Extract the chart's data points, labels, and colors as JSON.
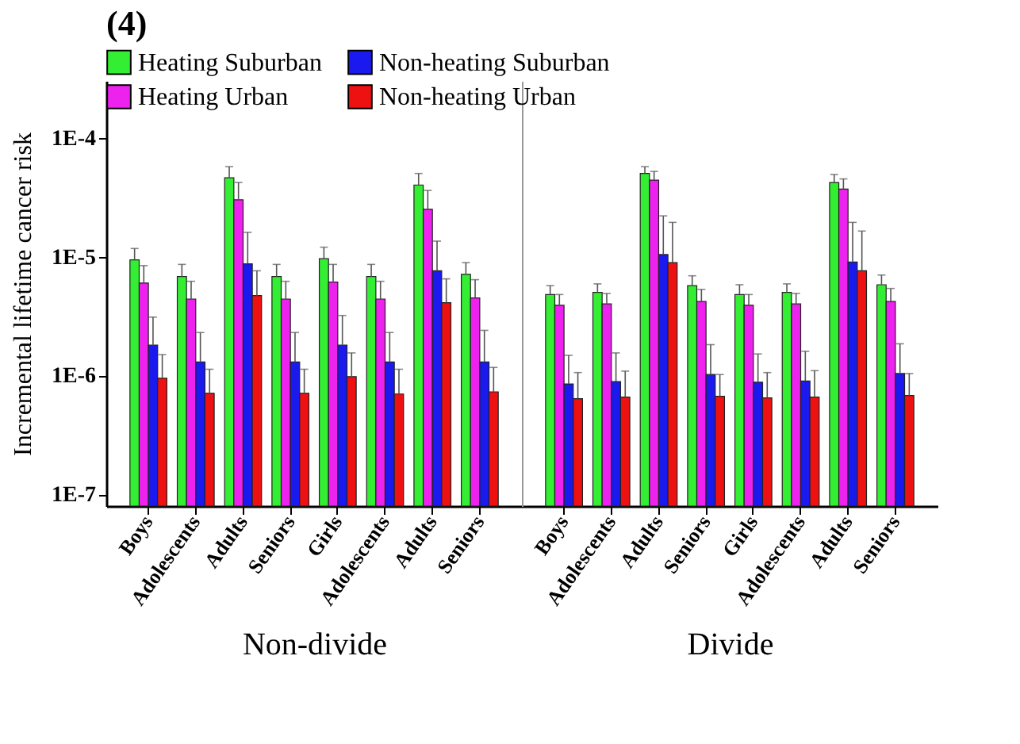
{
  "chart_data": [
    {
      "type": "bar",
      "title": "(4)",
      "ylabel": "Incremental lifetime cancer risk",
      "xlabel": "Non-divide",
      "log": "y",
      "legend": "top",
      "grid": false,
      "categories": [
        "Boys",
        "Adolescents",
        "Adults",
        "Seniors",
        "Girls",
        "Adolescents",
        "Adults",
        "Seniors"
      ],
      "ylim": [
        8e-08,
        0.0003
      ],
      "yticks": [
        {
          "value": 1e-07,
          "label": "1E-7"
        },
        {
          "value": 1e-06,
          "label": "1E-6"
        },
        {
          "value": 1e-05,
          "label": "1E-5"
        },
        {
          "value": 0.0001,
          "label": "1E-4"
        }
      ],
      "series": [
        {
          "name": "Heating Suburban",
          "color": "#33ee33",
          "values": [
            9.4e-06,
            6.8e-06,
            4.6e-05,
            6.8e-06,
            9.6e-06,
            6.8e-06,
            4e-05,
            7.1e-06
          ],
          "errors": [
            [
              9.4e-06,
              1.17e-05
            ],
            [
              6.8e-06,
              8.6e-06
            ],
            [
              4.6e-05,
              5.7e-05
            ],
            [
              6.8e-06,
              8.6e-06
            ],
            [
              9.6e-06,
              1.2e-05
            ],
            [
              6.8e-06,
              8.6e-06
            ],
            [
              4e-05,
              5e-05
            ],
            [
              7.1e-06,
              8.9e-06
            ]
          ]
        },
        {
          "name": "Heating Urban",
          "color": "#ee22ee",
          "values": [
            6e-06,
            4.4e-06,
            3e-05,
            4.4e-06,
            6.1e-06,
            4.4e-06,
            2.5e-05,
            4.5e-06
          ],
          "errors": [
            [
              6e-06,
              8.4e-06
            ],
            [
              4.4e-06,
              6.2e-06
            ],
            [
              3e-05,
              4.2e-05
            ],
            [
              4.4e-06,
              6.2e-06
            ],
            [
              6.1e-06,
              8.6e-06
            ],
            [
              4.4e-06,
              6.2e-06
            ],
            [
              2.5e-05,
              3.6e-05
            ],
            [
              4.5e-06,
              6.4e-06
            ]
          ]
        },
        {
          "name": "Non-heating Suburban",
          "color": "#1a1aee",
          "values": [
            1.8e-06,
            1.3e-06,
            8.7e-06,
            1.3e-06,
            1.8e-06,
            1.3e-06,
            7.6e-06,
            1.3e-06
          ],
          "errors": [
            [
              1.8e-06,
              3.1e-06
            ],
            [
              1.3e-06,
              2.3e-06
            ],
            [
              8.7e-06,
              1.6e-05
            ],
            [
              1.3e-06,
              2.3e-06
            ],
            [
              1.8e-06,
              3.2e-06
            ],
            [
              1.3e-06,
              2.3e-06
            ],
            [
              7.6e-06,
              1.35e-05
            ],
            [
              1.3e-06,
              2.4e-06
            ]
          ]
        },
        {
          "name": "Non-heating Urban",
          "color": "#ee1111",
          "values": [
            9.5e-07,
            7.1e-07,
            4.7e-06,
            7.1e-07,
            9.8e-07,
            7e-07,
            4.1e-06,
            7.3e-07
          ],
          "errors": [
            [
              9.5e-07,
              1.5e-06
            ],
            [
              7.1e-07,
              1.13e-06
            ],
            [
              4.7e-06,
              7.6e-06
            ],
            [
              7.1e-07,
              1.13e-06
            ],
            [
              9.8e-07,
              1.55e-06
            ],
            [
              7e-07,
              1.13e-06
            ],
            [
              4.1e-06,
              6.5e-06
            ],
            [
              7.3e-07,
              1.17e-06
            ]
          ]
        }
      ]
    },
    {
      "type": "bar",
      "xlabel": "Divide",
      "log": "y",
      "legend": false,
      "grid": false,
      "tick_labels": "x",
      "categories": [
        "Boys",
        "Adolescents",
        "Adults",
        "Seniors",
        "Girls",
        "Adolescents",
        "Adults",
        "Seniors"
      ],
      "ylim": [
        8e-08,
        0.0003
      ],
      "yticks": [
        {
          "value": 1e-07,
          "label": null
        },
        {
          "value": 1e-06,
          "label": null
        },
        {
          "value": 1e-05,
          "label": null
        },
        {
          "value": 0.0001,
          "label": null
        }
      ],
      "series": [
        {
          "name": "Heating Suburban",
          "color": "#33ee33",
          "values": [
            4.8e-06,
            5e-06,
            5e-05,
            5.7e-06,
            4.8e-06,
            5e-06,
            4.2e-05,
            5.8e-06
          ],
          "errors": [
            [
              4.8e-06,
              5.7e-06
            ],
            [
              5e-06,
              5.9e-06
            ],
            [
              5e-05,
              5.7e-05
            ],
            [
              5.7e-06,
              6.9e-06
            ],
            [
              4.8e-06,
              5.8e-06
            ],
            [
              5e-06,
              5.9e-06
            ],
            [
              4.2e-05,
              4.9e-05
            ],
            [
              5.8e-06,
              7e-06
            ]
          ]
        },
        {
          "name": "Heating Urban",
          "color": "#ee22ee",
          "values": [
            3.9e-06,
            4e-06,
            4.4e-05,
            4.2e-06,
            3.9e-06,
            4e-06,
            3.7e-05,
            4.2e-06
          ],
          "errors": [
            [
              3.9e-06,
              4.8e-06
            ],
            [
              4e-06,
              4.9e-06
            ],
            [
              4.4e-05,
              5.2e-05
            ],
            [
              4.2e-06,
              5.3e-06
            ],
            [
              3.9e-06,
              4.8e-06
            ],
            [
              4e-06,
              4.9e-06
            ],
            [
              3.7e-05,
              4.5e-05
            ],
            [
              4.2e-06,
              5.4e-06
            ]
          ]
        },
        {
          "name": "Non-heating Suburban",
          "color": "#1a1aee",
          "values": [
            8.5e-07,
            8.9e-07,
            1.04e-05,
            1.02e-06,
            8.8e-07,
            9e-07,
            9e-06,
            1.04e-06
          ],
          "errors": [
            [
              8.5e-07,
              1.48e-06
            ],
            [
              8.9e-07,
              1.55e-06
            ],
            [
              1.04e-05,
              2.2e-05
            ],
            [
              1.02e-06,
              1.82e-06
            ],
            [
              8.8e-07,
              1.52e-06
            ],
            [
              9e-07,
              1.6e-06
            ],
            [
              9e-06,
              1.94e-05
            ],
            [
              1.04e-06,
              1.85e-06
            ]
          ]
        },
        {
          "name": "Non-heating Urban",
          "color": "#ee1111",
          "values": [
            6.4e-07,
            6.6e-07,
            8.9e-06,
            6.7e-07,
            6.5e-07,
            6.6e-07,
            7.6e-06,
            6.8e-07
          ],
          "errors": [
            [
              6.4e-07,
              1.06e-06
            ],
            [
              6.6e-07,
              1.09e-06
            ],
            [
              8.9e-06,
              1.94e-05
            ],
            [
              6.7e-07,
              1.02e-06
            ],
            [
              6.5e-07,
              1.06e-06
            ],
            [
              6.6e-07,
              1.1e-06
            ],
            [
              7.6e-06,
              1.64e-05
            ],
            [
              6.8e-07,
              1.04e-06
            ]
          ]
        }
      ]
    }
  ]
}
